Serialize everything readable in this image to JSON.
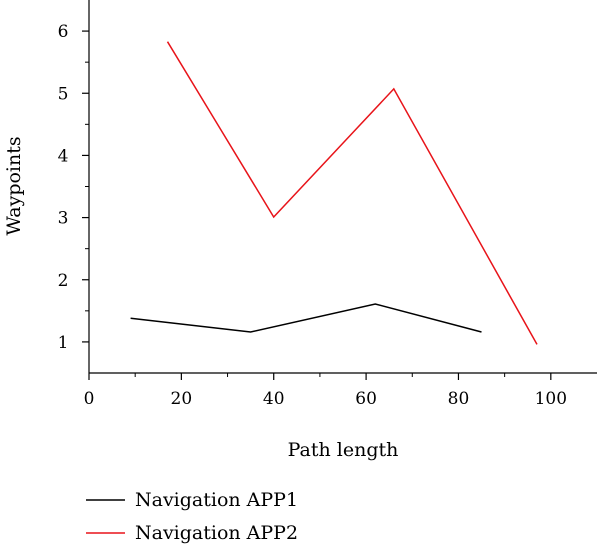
{
  "chart_data": {
    "type": "line",
    "title": "",
    "xlabel": "Path length",
    "ylabel": "Waypoints",
    "xlim": [
      0,
      110
    ],
    "ylim": [
      0.5,
      6.5
    ],
    "x_ticks": [
      0,
      20,
      40,
      60,
      80,
      100
    ],
    "y_ticks": [
      1,
      2,
      3,
      4,
      5,
      6
    ],
    "grid": false,
    "legend_position": "bottom-left",
    "series": [
      {
        "name": "Navigation APP1",
        "color": "#000000",
        "x": [
          9,
          35,
          62,
          85
        ],
        "y": [
          1.38,
          1.16,
          1.61,
          1.16
        ]
      },
      {
        "name": "Navigation APP2",
        "color": "#e8141a",
        "x": [
          17,
          40,
          66,
          97
        ],
        "y": [
          5.83,
          3.01,
          5.07,
          0.96
        ]
      }
    ]
  }
}
